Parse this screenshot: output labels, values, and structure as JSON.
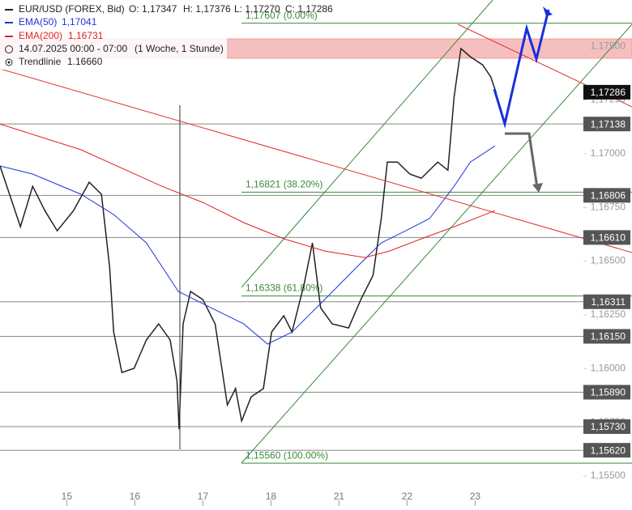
{
  "chart_data": {
    "type": "line",
    "title": "EUR/USD (FOREX, Bid)",
    "ohlc": [
      "O: 1,17347",
      "H: 1,17376",
      "L: 1,17270",
      "C: 1,17286"
    ],
    "legend_info": [
      "14.07.2025 00:00 - 07:00",
      "(1 Woche, 1 Stunde)"
    ],
    "trendline_label": "Trendlinie",
    "trendline_value": {
      "value": 1.1666,
      "label": "1.16660"
    },
    "xlim": [
      -0.98,
      7.59
    ],
    "xticks": [
      {
        "value": 0,
        "label": "15"
      },
      {
        "value": 1,
        "label": "16"
      },
      {
        "value": 2,
        "label": "17"
      },
      {
        "value": 3,
        "label": "18"
      },
      {
        "value": 4,
        "label": "21"
      },
      {
        "value": 5,
        "label": "22"
      },
      {
        "value": 6,
        "label": "23"
      }
    ],
    "ylim": [
      1.15455,
      1.17715
    ],
    "yticks": [
      {
        "value": 1.155,
        "label": "1,15500"
      },
      {
        "value": 1.1575,
        "label": "1,15750"
      },
      {
        "value": 1.16,
        "label": "1,16000"
      },
      {
        "value": 1.1625,
        "label": "1,16250"
      },
      {
        "value": 1.165,
        "label": "1,16500"
      },
      {
        "value": 1.1675,
        "label": "1,16750"
      },
      {
        "value": 1.17,
        "label": "1,17000"
      },
      {
        "value": 1.1725,
        "label": "1,17250"
      },
      {
        "value": 1.175,
        "label": "1,17500"
      }
    ],
    "zone": [
      1.17444,
      1.17534
    ],
    "levels": [
      {
        "value": 1.17138,
        "label": "1,17138"
      },
      {
        "value": 1.16806,
        "label": "1,16806"
      },
      {
        "value": 1.1661,
        "label": "1,16610"
      },
      {
        "value": 1.16311,
        "label": "1,16311"
      },
      {
        "value": 1.1615,
        "label": "1,16150"
      },
      {
        "value": 1.1589,
        "label": "1,15890"
      },
      {
        "value": 1.1573,
        "label": "1,15730"
      },
      {
        "value": 1.1562,
        "label": "1,15620"
      }
    ],
    "current": {
      "value": 1.17286,
      "label": "1,17286"
    },
    "fib": [
      {
        "value": 1.17607,
        "label": "1,17607 (0.00%)"
      },
      {
        "value": 1.16821,
        "label": "1,16821 (38.20%)"
      },
      {
        "value": 1.16338,
        "label": "1,16338 (61.80%)"
      },
      {
        "value": 1.1556,
        "label": "1,15560 (100.00%)"
      }
    ],
    "series": [
      {
        "name": "EUR/USD",
        "color": "#222222",
        "x": [
          -0.98,
          -0.86,
          -0.68,
          -0.5,
          -0.32,
          -0.14,
          0.1,
          0.33,
          0.51,
          0.63,
          0.69,
          0.81,
          0.99,
          1.17,
          1.35,
          1.52,
          1.62,
          1.65,
          1.71,
          1.82,
          2.0,
          2.18,
          2.36,
          2.48,
          2.57,
          2.71,
          2.89,
          3.01,
          3.19,
          3.31,
          3.49,
          3.61,
          3.73,
          3.9,
          4.14,
          4.32,
          4.5,
          4.62,
          4.71,
          4.86,
          5.04,
          5.21,
          5.45,
          5.6,
          5.69,
          5.79,
          5.93,
          6.11,
          6.23,
          6.31
        ],
        "values": [
          1.16943,
          1.1683,
          1.1666,
          1.16848,
          1.16735,
          1.16641,
          1.16735,
          1.16867,
          1.16811,
          1.16472,
          1.1617,
          1.15982,
          1.16001,
          1.16133,
          1.16208,
          1.16133,
          1.15944,
          1.15718,
          1.16208,
          1.16359,
          1.16321,
          1.16208,
          1.15831,
          1.15907,
          1.15756,
          1.15869,
          1.15907,
          1.1617,
          1.16246,
          1.1617,
          1.16396,
          1.16585,
          1.16283,
          1.16208,
          1.16189,
          1.16321,
          1.16434,
          1.16698,
          1.16961,
          1.16961,
          1.16905,
          1.16886,
          1.16961,
          1.16923,
          1.17263,
          1.17489,
          1.17451,
          1.17413,
          1.17357,
          1.17282
        ]
      },
      {
        "name": "EMA(50)",
        "value_label": "1,17041",
        "color": "#2233dd",
        "x": [
          -0.98,
          -0.5,
          0.21,
          0.69,
          1.17,
          1.64,
          2.12,
          2.6,
          2.95,
          3.31,
          3.79,
          4.26,
          4.62,
          4.98,
          5.33,
          5.69,
          5.93,
          6.29
        ],
        "values": [
          1.16943,
          1.16905,
          1.16811,
          1.16717,
          1.16585,
          1.16359,
          1.16283,
          1.16208,
          1.16114,
          1.1617,
          1.16321,
          1.16472,
          1.16585,
          1.16641,
          1.16698,
          1.16848,
          1.16961,
          1.17036
        ]
      },
      {
        "name": "EMA(200)",
        "value_label": "1,16731",
        "color": "#dd2222",
        "x": [
          -0.98,
          0.21,
          1.4,
          2.0,
          2.6,
          3.19,
          3.79,
          4.38,
          4.74,
          5.21,
          5.69,
          6.29
        ],
        "values": [
          1.17138,
          1.17018,
          1.16848,
          1.16773,
          1.16679,
          1.16604,
          1.16547,
          1.16517,
          1.16547,
          1.16604,
          1.1666,
          1.16735
        ]
      }
    ]
  }
}
